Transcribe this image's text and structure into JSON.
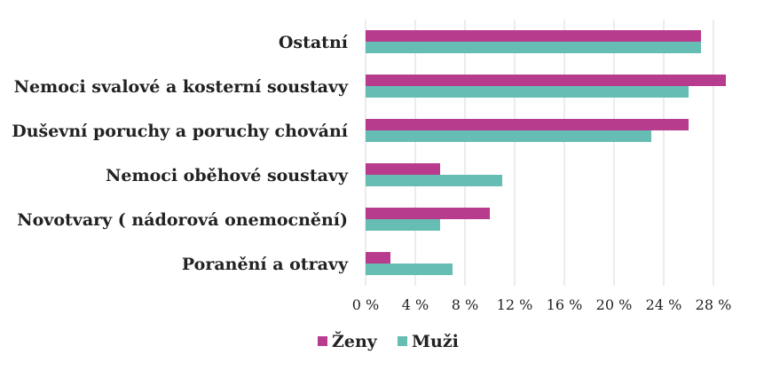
{
  "chart_data": {
    "type": "bar",
    "orientation": "horizontal",
    "categories": [
      "Ostatní",
      "Nemoci svalové a kosterní soustavy",
      "Duševní poruchy a poruchy chování",
      "Nemoci oběhové soustavy",
      "Novotvary ( nádorová onemocnění)",
      "Poranění a otravy"
    ],
    "series": [
      {
        "name": "Ženy",
        "color": "#b83c8e",
        "values": [
          27,
          29,
          26,
          6,
          10,
          2
        ]
      },
      {
        "name": "Muži",
        "color": "#66bdb3",
        "values": [
          27,
          26,
          23,
          11,
          6,
          7
        ]
      }
    ],
    "xlim": [
      0,
      30
    ],
    "xticks": [
      0,
      4,
      8,
      12,
      16,
      20,
      24,
      28
    ],
    "tick_labels": [
      "0 %",
      "4 %",
      "8 %",
      "12 %",
      "16 %",
      "20 %",
      "24 %",
      "28 %"
    ],
    "grid": true,
    "legend_position": "bottom"
  }
}
